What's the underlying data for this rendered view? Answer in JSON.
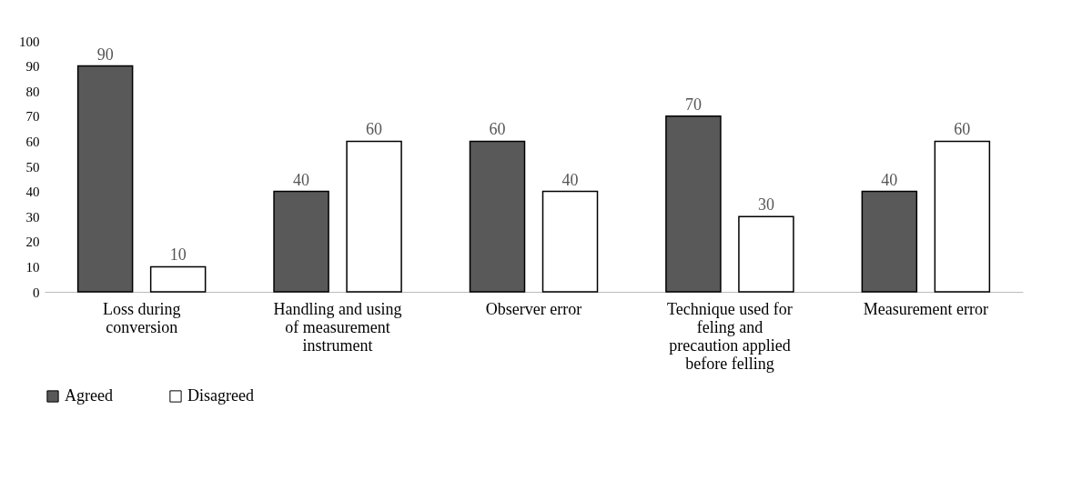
{
  "chart_data": {
    "type": "bar",
    "categories": [
      "Loss during conversion",
      "Handling and using of measurement instrument",
      "Observer error",
      "Technique used for feling and precaution applied before felling",
      "Measurement error"
    ],
    "series": [
      {
        "name": "Agreed",
        "color": "#595959",
        "values": [
          90,
          40,
          60,
          70,
          40
        ]
      },
      {
        "name": "Disagreed",
        "color": "#ffffff",
        "values": [
          10,
          60,
          40,
          30,
          60
        ]
      }
    ],
    "ylim": [
      0,
      100
    ],
    "yticks": [
      0,
      10,
      20,
      30,
      40,
      50,
      60,
      70,
      80,
      90,
      100
    ],
    "grid": false,
    "legend": "bottom",
    "data_labels": true
  }
}
